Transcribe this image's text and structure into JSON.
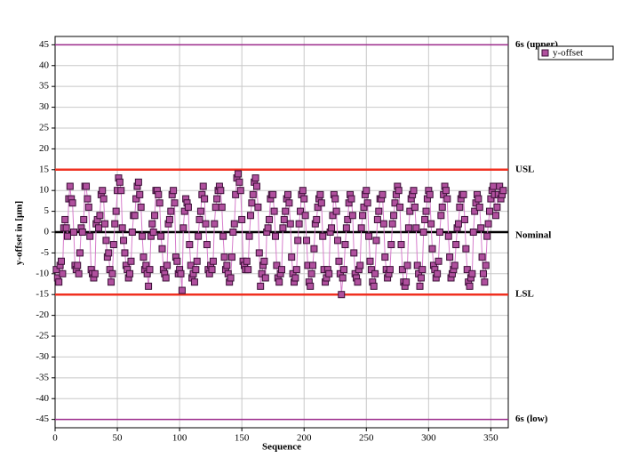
{
  "chart_data": {
    "type": "line",
    "xlabel": "Sequence",
    "ylabel": "y-offset in [μm]",
    "xlim": [
      0,
      364
    ],
    "xticks": [
      0,
      50,
      100,
      150,
      200,
      250,
      300,
      350
    ],
    "ylim": [
      -47,
      47
    ],
    "yticks": [
      -45,
      -40,
      -35,
      -30,
      -25,
      -20,
      -15,
      -10,
      -5,
      0,
      5,
      10,
      15,
      20,
      25,
      30,
      35,
      40,
      45
    ],
    "grid": true,
    "legend": "top-right",
    "reference_lines": [
      {
        "label": "6s (upper)",
        "value": 45,
        "color": "#9c2a8c"
      },
      {
        "label": "USL",
        "value": 15,
        "color": "#f03020"
      },
      {
        "label": "Nominal",
        "value": 0,
        "color": "#000000"
      },
      {
        "label": "LSL",
        "value": -15,
        "color": "#f03020"
      },
      {
        "label": "6s (low)",
        "value": -45,
        "color": "#9c2a8c"
      }
    ],
    "x": [
      1,
      2,
      3,
      4,
      5,
      6,
      7,
      8,
      9,
      10,
      11,
      12,
      13,
      14,
      15,
      16,
      17,
      18,
      19,
      20,
      21,
      22,
      23,
      24,
      25,
      26,
      27,
      28,
      29,
      30,
      31,
      32,
      33,
      34,
      35,
      36,
      37,
      38,
      39,
      40,
      41,
      42,
      43,
      44,
      45,
      46,
      47,
      48,
      49,
      50,
      51,
      52,
      53,
      54,
      55,
      56,
      57,
      58,
      59,
      60,
      61,
      62,
      63,
      64,
      65,
      66,
      67,
      68,
      69,
      70,
      71,
      72,
      73,
      74,
      75,
      76,
      77,
      78,
      79,
      80,
      81,
      82,
      83,
      84,
      85,
      86,
      87,
      88,
      89,
      90,
      91,
      92,
      93,
      94,
      95,
      96,
      97,
      98,
      99,
      100,
      101,
      102,
      103,
      104,
      105,
      106,
      107,
      108,
      109,
      110,
      111,
      112,
      113,
      114,
      115,
      116,
      117,
      118,
      119,
      120,
      121,
      122,
      123,
      124,
      125,
      126,
      127,
      128,
      129,
      130,
      131,
      132,
      133,
      134,
      135,
      136,
      137,
      138,
      139,
      140,
      141,
      142,
      143,
      144,
      145,
      146,
      147,
      148,
      149,
      150,
      151,
      152,
      153,
      154,
      155,
      156,
      157,
      158,
      159,
      160,
      161,
      162,
      163,
      164,
      165,
      166,
      167,
      168,
      169,
      170,
      171,
      172,
      173,
      174,
      175,
      176,
      177,
      178,
      179,
      180,
      181,
      182,
      183,
      184,
      185,
      186,
      187,
      188,
      189,
      190,
      191,
      192,
      193,
      194,
      195,
      196,
      197,
      198,
      199,
      200,
      201,
      202,
      203,
      204,
      205,
      206,
      207,
      208,
      209,
      210,
      211,
      212,
      213,
      214,
      215,
      216,
      217,
      218,
      219,
      220,
      221,
      222,
      223,
      224,
      225,
      226,
      227,
      228,
      229,
      230,
      231,
      232,
      233,
      234,
      235,
      236,
      237,
      238,
      239,
      240,
      241,
      242,
      243,
      244,
      245,
      246,
      247,
      248,
      249,
      250,
      251,
      252,
      253,
      254,
      255,
      256,
      257,
      258,
      259,
      260,
      261,
      262,
      263,
      264,
      265,
      266,
      267,
      268,
      269,
      270,
      271,
      272,
      273,
      274,
      275,
      276,
      277,
      278,
      279,
      280,
      281,
      282,
      283,
      284,
      285,
      286,
      287,
      288,
      289,
      290,
      291,
      292,
      293,
      294,
      295,
      296,
      297,
      298,
      299,
      300,
      301,
      302,
      303,
      304,
      305,
      306,
      307,
      308,
      309,
      310,
      311,
      312,
      313,
      314,
      315,
      316,
      317,
      318,
      319,
      320,
      321,
      322,
      323,
      324,
      325,
      326,
      327,
      328,
      329,
      330,
      331,
      332,
      333,
      334,
      335,
      336,
      337,
      338,
      339,
      340,
      341,
      342,
      343,
      344,
      345,
      346,
      347,
      348,
      349,
      350,
      351,
      352,
      353,
      354,
      355,
      356,
      357,
      358,
      359,
      360
    ],
    "series": [
      {
        "name": "y-offset",
        "color": "#b0509e",
        "line_color": "#d67ccb",
        "values": [
          -9,
          -11,
          -12,
          -8,
          -7,
          -10,
          1,
          3,
          1,
          -1,
          8,
          11,
          8,
          7,
          0,
          -8,
          -9,
          -8,
          -10,
          -5,
          1,
          0,
          3,
          11,
          11,
          8,
          6,
          -1,
          -9,
          -10,
          -11,
          -10,
          2,
          3,
          1,
          4,
          9,
          10,
          8,
          2,
          -2,
          -6,
          -5,
          -9,
          -12,
          -10,
          -3,
          2,
          5,
          10,
          13,
          12,
          10,
          1,
          -2,
          -5,
          -8,
          -9,
          -11,
          -10,
          -7,
          0,
          4,
          4,
          8,
          11,
          12,
          9,
          6,
          -1,
          -6,
          -9,
          -8,
          -10,
          -13,
          -9,
          -1,
          2,
          0,
          4,
          10,
          10,
          9,
          7,
          -1,
          -4,
          -9,
          -10,
          -11,
          -8,
          2,
          3,
          5,
          9,
          10,
          7,
          -6,
          -7,
          -10,
          -9,
          -10,
          -14,
          1,
          5,
          8,
          7,
          6,
          -3,
          -8,
          -11,
          -10,
          -12,
          -9,
          -7,
          -1,
          3,
          5,
          9,
          11,
          8,
          2,
          -3,
          -9,
          -10,
          -8,
          -9,
          -7,
          2,
          6,
          8,
          10,
          11,
          10,
          6,
          -1,
          -6,
          -9,
          -8,
          -10,
          -12,
          -11,
          -6,
          0,
          2,
          9,
          13,
          14,
          12,
          10,
          3,
          -7,
          -8,
          -9,
          -7,
          -9,
          -1,
          4,
          7,
          9,
          12,
          13,
          11,
          6,
          -5,
          -13,
          -10,
          -8,
          -7,
          -11,
          0,
          1,
          3,
          8,
          9,
          9,
          5,
          -1,
          -8,
          -11,
          -12,
          -10,
          -9,
          1,
          3,
          5,
          8,
          9,
          7,
          2,
          -6,
          -10,
          -12,
          -11,
          -9,
          -2,
          2,
          5,
          9,
          10,
          8,
          4,
          -2,
          -8,
          -12,
          -13,
          -10,
          -8,
          -4,
          2,
          3,
          6,
          8,
          9,
          7,
          -1,
          -9,
          -12,
          -11,
          -9,
          -10,
          0,
          1,
          4,
          9,
          8,
          5,
          -2,
          -7,
          -10,
          -15,
          -11,
          -9,
          -3,
          1,
          3,
          7,
          9,
          8,
          4,
          -5,
          -10,
          -11,
          -12,
          -9,
          -8,
          1,
          4,
          6,
          9,
          10,
          7,
          -1,
          -7,
          -9,
          -12,
          -13,
          -10,
          -2,
          3,
          5,
          8,
          8,
          9,
          2,
          -6,
          -9,
          -11,
          -10,
          -9,
          -3,
          2,
          4,
          7,
          9,
          11,
          10,
          6,
          -3,
          -9,
          -12,
          -13,
          -12,
          -8,
          1,
          5,
          8,
          9,
          10,
          6,
          1,
          -8,
          -10,
          -13,
          -11,
          -9,
          0,
          3,
          5,
          8,
          10,
          9,
          2,
          -4,
          -8,
          -9,
          -11,
          -10,
          -7,
          0,
          4,
          6,
          9,
          11,
          10,
          8,
          -1,
          -6,
          -11,
          -10,
          -9,
          -8,
          -3,
          1,
          2,
          6,
          8,
          9,
          9,
          3,
          -4,
          -9,
          -12,
          -13,
          -11,
          -10,
          0,
          5,
          7,
          9,
          8,
          6,
          1,
          -6,
          -10,
          -12,
          -8,
          -1,
          2,
          5,
          8,
          10,
          11,
          9,
          4,
          6,
          9,
          11,
          8,
          9,
          10
        ]
      }
    ]
  }
}
